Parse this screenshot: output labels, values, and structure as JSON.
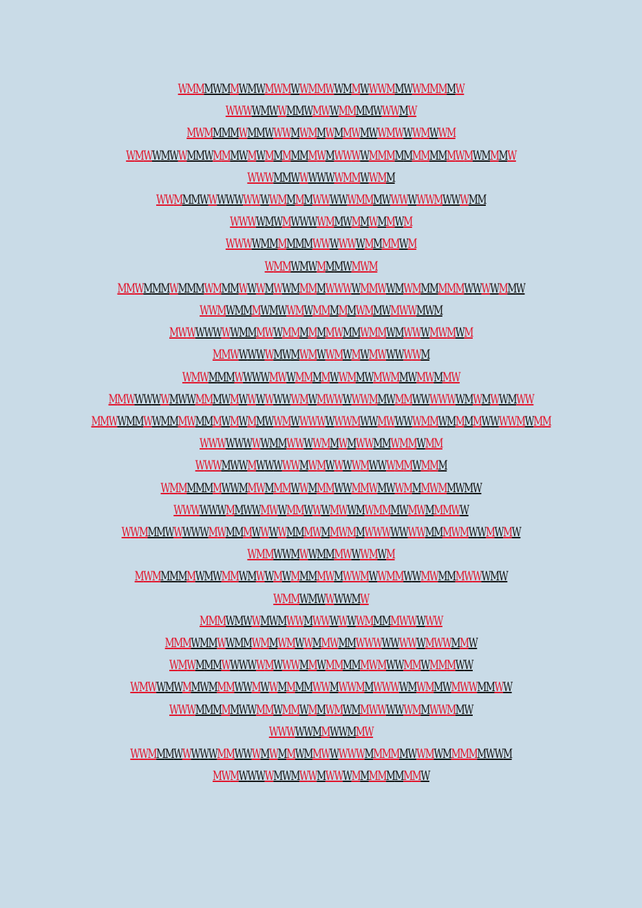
{
  "colors": {
    "background": "#c9dbe7",
    "red": "#e1142b",
    "black": "#151515"
  },
  "rows": [
    {
      "text": "WMMMWMMWMWMWMWWMMWWMMWWWMMWWMMMMW",
      "colors": "rrrkkkrkkkrrrkrrrrkkrkrrrkkrrrrkr"
    },
    {
      "text": "WWWWMWWMMWMWWMMMMWWWMW",
      "colors": "rrrkkkrkkkrrkrrkkkrrkr"
    },
    {
      "text": "MWMMMMWMMWWWMWMMWMMWMWWMWWWMWWM",
      "colors": "rrrkkkrkkkrrkrrkrkrrkkrrrkrrkrr"
    },
    {
      "text": "WMWWMWWMMWMMMWMWMMMMMMWMWWWWMMMMMMMMMMWMWMMMW",
      "colors": "rrrkkkrkkkrrkkrkrkrkkrrkrrrkrrrkkrrkkrrrkkrkr"
    },
    {
      "text": "WWWMMWWWWWWMMWWMM",
      "colors": "rrrkkkrkkkrrrkrrk"
    },
    {
      "text": "WWMMMWWWWWWWWWMMMMWWWWWMMMWWWWWWMWWWMM",
      "colors": "rrrkkkrkkkrrkrrkrkrrkkrrrkkrrkrrrkkrkk"
    },
    {
      "text": "WWWWMWMWWWWMMWMMWMMWM",
      "colors": "rrrkkkrkkkrrkkrkrkrkr"
    },
    {
      "text": "WWWWMMMMMMWWWWWWMMMMWM",
      "colors": "rrrkkkrkkkrrkrrkrkrrkr"
    },
    {
      "text": "WMMWMWMMMWMWM",
      "colors": "rrrkkkrkkkrrr"
    },
    {
      "text": "MMWMMMWMMMWMMMWWWMWWMMMMWWWWMMWWMWMMMMMMWWWWMMW",
      "colors": "rrrkkkrkkkrrkkrkrkrkkrrkrrrkrrrkkrrkkrrrkkrkrkk"
    },
    {
      "text": "WWMWMMMWMWWMWMMMMMWMMWMWWMWM",
      "colors": "rrrkkkrkkkrrkrrkrkrrkkrrrkkk"
    },
    {
      "text": "MWWWWWWWMMMWWMMMMMMWMMWMMWMWWWMWMWM",
      "colors": "rrrkkkrkkkrrkrrkrkrrkkrrrkkrrkrrrkr"
    },
    {
      "text": "MMWWWWWMWMWMWWMWMWMWWWWWM",
      "colors": "rrrkkkrkkkrrkrrkrkrrkkrrk"
    },
    {
      "text": "WMWMMMWWWWMWWMMMMWWMMWMWMMWMWMMW",
      "colors": "rrrkkkrkkkrrkrrkrkrrkkrrrkkrrkrr"
    },
    {
      "text": "MMWWWWWMWWMMMWMWWWWWWWMWMWWWWWMMWMMWWWWWWMWMWWMWW",
      "colors": "rrrkkkrkkkrrkkrkrkrkkrrkrrrkrrrkkrrkkrrrkkrkrkkrrr"
    },
    {
      "text": "MMWWMMWWMMMWMMMWMWMMWWMWWWWWWWMWWMWWWWMMWMMMMWWWWMWMM",
      "colors": "rrrkkkrkkkrrkkrkrkrkkrrkrrrkrrrkkrrkkrrrkkrkrkkrrrkr"
    },
    {
      "text": "WWWWWWWWMMWWWWMMWMWWMMWMMWMM",
      "colors": "rrrkkkrkkkrrkrrkrkrrkkrrrkrr"
    },
    {
      "text": "WWWMWWMWWWWWMWMWWWWMWWWMMWMMM",
      "colors": "rrrkkkrkkkrrkrrkrkrrkkrrrkrrk"
    },
    {
      "text": "WMMMMMMWWMMWMMMWWMMMWWMMWMWWMMMWMMWMW",
      "colors": "rrrkkkrkkkrrkrrkrkrrkkrrrkkrrkrrrkkkk"
    },
    {
      "text": "WWWWWWMMWWMWWMMWWWMWWMWMMMWMWMMMWW",
      "colors": "rrrkkkrkkkrrkrrkrkrrkkrrrkkrrkrrrk"
    },
    {
      "text": "WWMMMWWWWWMWMMMWWWWMMMWMMWMMWWWWWWWMMMWMWWMWMW",
      "colors": "rrrkkkrkkkrrkkrkrkrkkrrkrrrkrrrkkrrkkrrrkkrkrk"
    },
    {
      "text": "WMMWWMWWMMMWWWMWM",
      "colors": "rrrkkkrkkkrrkrrkr"
    },
    {
      "text": "MWMMMMMWMWMMWMWWMWMMMMWMWWMWWMMWWMWMMMWWWMW",
      "colors": "rrrkkkrkkkrrkkrkrkrkkrrkrrrkrrrkkrrkkrrrkkk"
    },
    {
      "text": "WMMWMWWWWMW",
      "colors": "rrrkkkrkkkr"
    },
    {
      "text": "MMMWMWWMWMWWMWWWWWWMMMMWWWWW",
      "colors": "rrrkkkrkkkrrkrrkrkrrkkrrrkrr"
    },
    {
      "text": "MMMWMMWWMMWMMWMWWMMWMMWWWWWWWWMWWMMW",
      "colors": "rrrkkkrkkkrrkrrkrkrrkkrrrkkrrkrrrkrk"
    },
    {
      "text": "WMWMMMWWWWWMWWWMMWMMMMMWMWWMMWMMMWW",
      "colors": "rrrkkkrkkkrrkrrkrkrrkkrrrkkrrkrrrkk"
    },
    {
      "text": "WMWWMWMMWMMMWWMWWMMMMWWMWWMMWWWWMWMMWMWWMMWW",
      "colors": "rrrkkkrkkkrrkkrkrkrkkrrkrrrkrrrkkrrkkrrrkkrk"
    },
    {
      "text": "WWWMMMMMWWMMWMMWMMWMWMMWWWWWMMWWMMW",
      "colors": "rrrkkkrkkkrrkrrkrkrrkkrrrkkrrkrrrkk"
    },
    {
      "text": "WWWWWMMWWMMW",
      "colors": "rrrkkkrkkkrr"
    },
    {
      "text": "WWMMMWWWWWMMWWWMWMMWMMWWWWWMMMMMWWMWMMMMMWWM",
      "colors": "rrrkkkrkkkrrkkrkrkrkkrrkrrrkrrrkkrrkkrrrkkkk"
    },
    {
      "text": "MWMWWWWMWMWWMWWWMMMMMMMMW",
      "colors": "rrrkkkrkkkrrkrrkrkrrkkrrk"
    }
  ]
}
